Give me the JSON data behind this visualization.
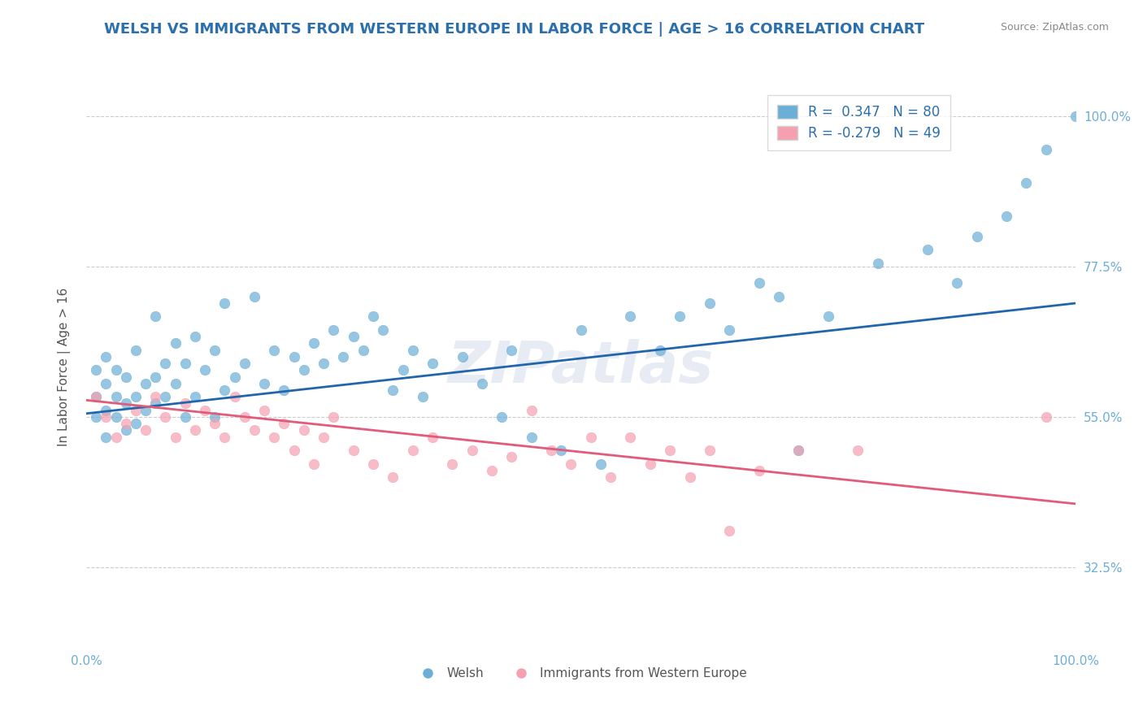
{
  "title": "WELSH VS IMMIGRANTS FROM WESTERN EUROPE IN LABOR FORCE | AGE > 16 CORRELATION CHART",
  "source_text": "Source: ZipAtlas.com",
  "xlabel": "",
  "ylabel": "In Labor Force | Age > 16",
  "xmin": 0.0,
  "xmax": 1.0,
  "ymin": 0.2,
  "ymax": 1.05,
  "yticks": [
    0.325,
    0.55,
    0.775,
    1.0
  ],
  "ytick_labels": [
    "32.5%",
    "55.0%",
    "77.5%",
    "100.0%"
  ],
  "xticks": [
    0.0,
    0.25,
    0.5,
    0.75,
    1.0
  ],
  "xtick_labels": [
    "0.0%",
    "",
    "",
    "",
    "100.0%"
  ],
  "legend_r_blue": "R =  0.347",
  "legend_n_blue": "N = 80",
  "legend_r_pink": "R = -0.279",
  "legend_n_pink": "N = 49",
  "legend_label_blue": "Welsh",
  "legend_label_pink": "Immigrants from Western Europe",
  "blue_color": "#6baed6",
  "pink_color": "#f4a0b0",
  "blue_line_color": "#2166ac",
  "pink_line_color": "#e05c7a",
  "title_color": "#2c6fad",
  "source_color": "#888888",
  "axis_label_color": "#555555",
  "tick_label_color": "#6baed6",
  "grid_color": "#cccccc",
  "watermark_text": "ZIPatlas",
  "watermark_color": "#d0d8e8",
  "blue_scatter_x": [
    0.01,
    0.01,
    0.01,
    0.02,
    0.02,
    0.02,
    0.02,
    0.03,
    0.03,
    0.03,
    0.04,
    0.04,
    0.04,
    0.05,
    0.05,
    0.05,
    0.06,
    0.06,
    0.07,
    0.07,
    0.07,
    0.08,
    0.08,
    0.09,
    0.09,
    0.1,
    0.1,
    0.11,
    0.11,
    0.12,
    0.13,
    0.13,
    0.14,
    0.14,
    0.15,
    0.16,
    0.17,
    0.18,
    0.19,
    0.2,
    0.21,
    0.22,
    0.23,
    0.24,
    0.25,
    0.26,
    0.27,
    0.28,
    0.29,
    0.3,
    0.31,
    0.32,
    0.33,
    0.34,
    0.35,
    0.38,
    0.4,
    0.42,
    0.43,
    0.45,
    0.48,
    0.5,
    0.52,
    0.55,
    0.58,
    0.6,
    0.63,
    0.65,
    0.68,
    0.7,
    0.72,
    0.75,
    0.8,
    0.85,
    0.88,
    0.9,
    0.93,
    0.95,
    0.97,
    1.0
  ],
  "blue_scatter_y": [
    0.55,
    0.58,
    0.62,
    0.52,
    0.56,
    0.6,
    0.64,
    0.55,
    0.58,
    0.62,
    0.53,
    0.57,
    0.61,
    0.54,
    0.58,
    0.65,
    0.56,
    0.6,
    0.57,
    0.61,
    0.7,
    0.58,
    0.63,
    0.6,
    0.66,
    0.55,
    0.63,
    0.58,
    0.67,
    0.62,
    0.55,
    0.65,
    0.59,
    0.72,
    0.61,
    0.63,
    0.73,
    0.6,
    0.65,
    0.59,
    0.64,
    0.62,
    0.66,
    0.63,
    0.68,
    0.64,
    0.67,
    0.65,
    0.7,
    0.68,
    0.59,
    0.62,
    0.65,
    0.58,
    0.63,
    0.64,
    0.6,
    0.55,
    0.65,
    0.52,
    0.5,
    0.68,
    0.48,
    0.7,
    0.65,
    0.7,
    0.72,
    0.68,
    0.75,
    0.73,
    0.5,
    0.7,
    0.78,
    0.8,
    0.75,
    0.82,
    0.85,
    0.9,
    0.95,
    1.0
  ],
  "pink_scatter_x": [
    0.01,
    0.02,
    0.03,
    0.04,
    0.05,
    0.06,
    0.07,
    0.08,
    0.09,
    0.1,
    0.11,
    0.12,
    0.13,
    0.14,
    0.15,
    0.16,
    0.17,
    0.18,
    0.19,
    0.2,
    0.21,
    0.22,
    0.23,
    0.24,
    0.25,
    0.27,
    0.29,
    0.31,
    0.33,
    0.35,
    0.37,
    0.39,
    0.41,
    0.43,
    0.45,
    0.47,
    0.49,
    0.51,
    0.53,
    0.55,
    0.57,
    0.59,
    0.61,
    0.63,
    0.65,
    0.68,
    0.72,
    0.78,
    0.97
  ],
  "pink_scatter_y": [
    0.58,
    0.55,
    0.52,
    0.54,
    0.56,
    0.53,
    0.58,
    0.55,
    0.52,
    0.57,
    0.53,
    0.56,
    0.54,
    0.52,
    0.58,
    0.55,
    0.53,
    0.56,
    0.52,
    0.54,
    0.5,
    0.53,
    0.48,
    0.52,
    0.55,
    0.5,
    0.48,
    0.46,
    0.5,
    0.52,
    0.48,
    0.5,
    0.47,
    0.49,
    0.56,
    0.5,
    0.48,
    0.52,
    0.46,
    0.52,
    0.48,
    0.5,
    0.46,
    0.5,
    0.38,
    0.47,
    0.5,
    0.5,
    0.55
  ],
  "blue_line_x": [
    0.0,
    1.0
  ],
  "blue_line_y_start": 0.555,
  "blue_line_y_end": 0.72,
  "pink_line_x": [
    0.0,
    1.0
  ],
  "pink_line_y_start": 0.575,
  "pink_line_y_end": 0.42
}
